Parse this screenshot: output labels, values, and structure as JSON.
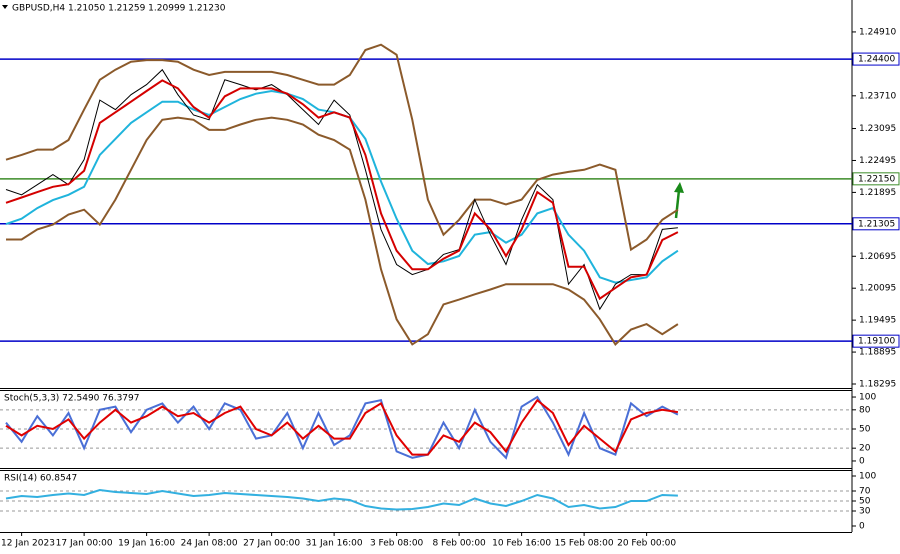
{
  "chart_data": [
    {
      "type": "line",
      "title": "GBPUSD,H4 1.21050 1.21259 1.20999 1.21230",
      "ylim": [
        1.1822,
        1.2551
      ],
      "yticks": [
        {
          "value": 1.2491,
          "label": "1.24910"
        },
        {
          "value": 1.2371,
          "label": "1.23710"
        },
        1.23095,
        1.22495,
        1.21895,
        1.20695,
        1.20095,
        1.19495,
        1.18895,
        1.18295
      ],
      "levels": [
        {
          "value": 1.244,
          "label": "1.24400",
          "color": "#0000c8"
        },
        {
          "value": 1.2215,
          "label": "1.22150",
          "color": "#3c8c28"
        },
        {
          "value": 1.21305,
          "label": "1.21305",
          "color": "#0000c8"
        },
        {
          "value": 1.191,
          "label": "1.19100",
          "color": "#0000c8"
        }
      ],
      "series": [
        {
          "color": "#8b5a2b",
          "values": [
            1.2251,
            1.226,
            1.227,
            1.227,
            1.2288,
            1.2345,
            1.2401,
            1.242,
            1.2435,
            1.2438,
            1.2438,
            1.2435,
            1.242,
            1.241,
            1.2416,
            1.2416,
            1.2416,
            1.2416,
            1.241,
            1.2401,
            1.2392,
            1.2392,
            1.241,
            1.2457,
            1.2467,
            1.2448,
            1.2326,
            1.2176,
            1.211,
            1.2138,
            1.2176,
            1.2176,
            1.2167,
            1.2176,
            1.2213,
            1.2223,
            1.2228,
            1.2232,
            1.2242,
            1.2232,
            1.2082,
            1.2101,
            1.2138,
            1.2157
          ]
        },
        {
          "color": "#8b5a2b",
          "values": [
            1.2101,
            1.2101,
            1.212,
            1.2129,
            1.2148,
            1.2157,
            1.2129,
            1.2176,
            1.2232,
            1.2288,
            1.2326,
            1.233,
            1.2326,
            1.2307,
            1.2307,
            1.2317,
            1.2326,
            1.233,
            1.2326,
            1.2317,
            1.2298,
            1.2288,
            1.227,
            1.2176,
            1.2045,
            1.1951,
            1.1904,
            1.1923,
            1.1979,
            1.1988,
            1.1998,
            1.2007,
            1.2017,
            1.2017,
            1.2017,
            1.2017,
            1.2007,
            1.1988,
            1.1951,
            1.1904,
            1.1932,
            1.1942,
            1.1923,
            1.1942
          ]
        },
        {
          "color": "#1fb4dc",
          "values": [
            1.213,
            1.214,
            1.216,
            1.2175,
            1.2185,
            1.22,
            1.226,
            1.229,
            1.232,
            1.234,
            1.236,
            1.236,
            1.2345,
            1.2335,
            1.235,
            1.2365,
            1.2375,
            1.238,
            1.2375,
            1.2365,
            1.2345,
            1.234,
            1.233,
            1.229,
            1.221,
            1.214,
            1.208,
            1.2055,
            1.206,
            1.207,
            1.211,
            1.2115,
            1.2095,
            1.211,
            1.215,
            1.216,
            1.211,
            1.208,
            1.203,
            1.202,
            1.2025,
            1.203,
            1.206,
            1.208
          ]
        },
        {
          "color": "#000000",
          "values": [
            1.2195,
            1.2185,
            1.2204,
            1.2223,
            1.2204,
            1.2251,
            1.2363,
            1.2345,
            1.2373,
            1.2392,
            1.242,
            1.2373,
            1.2335,
            1.2326,
            1.2401,
            1.2392,
            1.2382,
            1.2392,
            1.2373,
            1.2345,
            1.2317,
            1.2363,
            1.2335,
            1.2232,
            1.212,
            1.2054,
            1.2035,
            1.2045,
            1.2073,
            1.2082,
            1.2176,
            1.211,
            1.2054,
            1.2138,
            1.2204,
            1.2176,
            1.2017,
            1.2054,
            1.197,
            1.2017,
            1.2035,
            1.2035,
            1.212,
            1.2123
          ]
        },
        {
          "color": "#d40000",
          "values": [
            1.217,
            1.218,
            1.219,
            1.22,
            1.2205,
            1.223,
            1.232,
            1.234,
            1.236,
            1.238,
            1.24,
            1.2385,
            1.235,
            1.233,
            1.237,
            1.2385,
            1.2385,
            1.2385,
            1.2375,
            1.2355,
            1.233,
            1.234,
            1.233,
            1.226,
            1.215,
            1.208,
            1.2045,
            1.2045,
            1.2065,
            1.208,
            1.215,
            1.212,
            1.207,
            1.212,
            1.219,
            1.217,
            1.205,
            1.205,
            1.199,
            1.201,
            1.203,
            1.2035,
            1.21,
            1.2115
          ]
        }
      ]
    },
    {
      "type": "line",
      "title": "Stoch(5,3,3) 72.5490 76.3797",
      "ylim": [
        -11,
        111
      ],
      "yticks": [
        0,
        20,
        50,
        80,
        100
      ],
      "series": [
        {
          "color": "#4a6fd6",
          "values": [
            60,
            30,
            70,
            40,
            75,
            20,
            80,
            85,
            45,
            80,
            90,
            60,
            85,
            50,
            90,
            80,
            35,
            40,
            75,
            20,
            75,
            25,
            40,
            90,
            95,
            15,
            5,
            10,
            60,
            20,
            80,
            30,
            5,
            85,
            100,
            60,
            10,
            75,
            20,
            10,
            90,
            70,
            85,
            72.549
          ]
        },
        {
          "color": "#e00000",
          "values": [
            55,
            40,
            55,
            50,
            65,
            35,
            60,
            80,
            60,
            70,
            85,
            70,
            75,
            60,
            75,
            85,
            50,
            40,
            60,
            35,
            55,
            35,
            35,
            75,
            90,
            40,
            10,
            10,
            40,
            30,
            60,
            45,
            15,
            60,
            95,
            75,
            25,
            55,
            35,
            15,
            65,
            75,
            80,
            76.3797
          ]
        }
      ]
    },
    {
      "type": "line",
      "title": "RSI(14) 60.8547",
      "ylim": [
        -12,
        112
      ],
      "yticks": [
        0,
        30,
        50,
        70,
        100
      ],
      "categories": [
        null,
        "12 Jan 2023",
        null,
        null,
        null,
        "17 Jan 00:00",
        null,
        null,
        null,
        "19 Jan 16:00",
        null,
        null,
        null,
        "24 Jan 08:00",
        null,
        null,
        null,
        "27 Jan 00:00",
        null,
        null,
        null,
        "31 Jan 16:00",
        null,
        null,
        null,
        "3 Feb 08:00",
        null,
        null,
        null,
        "8 Feb 00:00",
        null,
        null,
        null,
        "10 Feb 16:00",
        null,
        null,
        null,
        "15 Feb 08:00",
        null,
        null,
        null,
        "20 Feb 00:00",
        null,
        null
      ],
      "series": [
        {
          "color": "#33b0e0",
          "values": [
            55,
            60,
            58,
            62,
            65,
            62,
            72,
            68,
            66,
            64,
            70,
            65,
            60,
            62,
            66,
            64,
            62,
            60,
            58,
            55,
            50,
            55,
            52,
            40,
            35,
            33,
            34,
            38,
            45,
            42,
            55,
            45,
            40,
            50,
            62,
            55,
            38,
            42,
            35,
            38,
            50,
            50,
            62,
            60.8547
          ]
        }
      ]
    }
  ]
}
